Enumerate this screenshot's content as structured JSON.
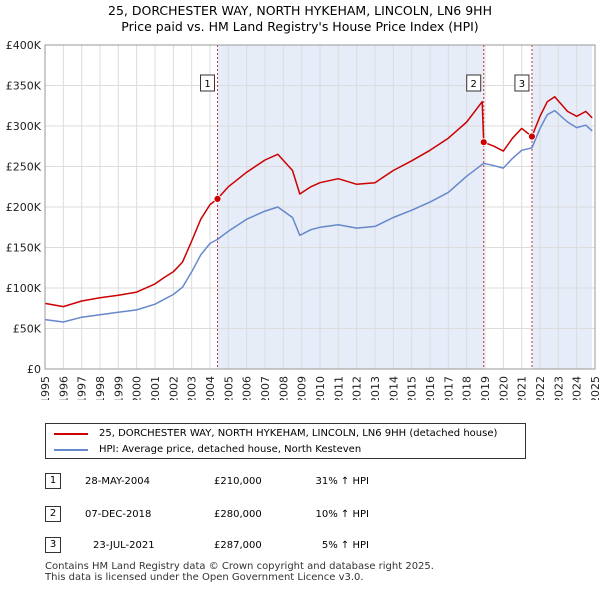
{
  "chart_data": {
    "type": "line",
    "title": "25, DORCHESTER WAY, NORTH HYKEHAM, LINCOLN, LN6 9HH",
    "subtitle": "Price paid vs. HM Land Registry's House Price Index (HPI)",
    "xlim": [
      1995.0,
      2025.0
    ],
    "ylim": [
      0,
      400000
    ],
    "grid": true,
    "x_ticks": [
      1995,
      1996,
      1997,
      1998,
      1999,
      2000,
      2001,
      2002,
      2003,
      2004,
      2005,
      2006,
      2007,
      2008,
      2009,
      2010,
      2011,
      2012,
      2013,
      2014,
      2015,
      2016,
      2017,
      2018,
      2019,
      2020,
      2021,
      2022,
      2023,
      2024,
      2025
    ],
    "x_tick_labels": [
      "1995",
      "1996",
      "1997",
      "1998",
      "1999",
      "2000",
      "2001",
      "2002",
      "2003",
      "2004",
      "2005",
      "2006",
      "2007",
      "2008",
      "2009",
      "2010",
      "2011",
      "2012",
      "2013",
      "2014",
      "2015",
      "2016",
      "2017",
      "2018",
      "2019",
      "2020",
      "2021",
      "2022",
      "2023",
      "2024",
      "2025"
    ],
    "y_ticks": [
      0,
      50000,
      100000,
      150000,
      200000,
      250000,
      300000,
      350000,
      400000
    ],
    "y_tick_labels": [
      "£0",
      "£50K",
      "£100K",
      "£150K",
      "£200K",
      "£250K",
      "£300K",
      "£350K",
      "£400K"
    ],
    "shaded_periods": [
      [
        2004.41,
        2018.93
      ],
      [
        2021.56,
        2024.85
      ]
    ],
    "series": [
      {
        "name": "25, DORCHESTER WAY, NORTH HYKEHAM, LINCOLN, LN6 9HH (detached house)",
        "color": "#cc0000",
        "x": [
          1995.0,
          1996.0,
          1997.0,
          1998.0,
          1999.0,
          2000.0,
          2001.0,
          2001.5,
          2002.0,
          2002.5,
          2003.0,
          2003.5,
          2004.0,
          2004.41,
          2005.0,
          2006.0,
          2007.0,
          2007.7,
          2008.5,
          2008.9,
          2009.5,
          2010.0,
          2011.0,
          2012.0,
          2013.0,
          2014.0,
          2015.0,
          2016.0,
          2017.0,
          2018.0,
          2018.85,
          2018.93,
          2019.5,
          2020.0,
          2020.5,
          2021.0,
          2021.56,
          2022.0,
          2022.4,
          2022.8,
          2023.5,
          2024.0,
          2024.5,
          2024.85
        ],
        "values": [
          81000,
          77000,
          84000,
          88000,
          91000,
          95000,
          105000,
          113000,
          120000,
          132000,
          158000,
          185000,
          203000,
          210000,
          225000,
          243000,
          258000,
          265000,
          245000,
          216000,
          225000,
          230000,
          235000,
          228000,
          230000,
          245000,
          257000,
          270000,
          285000,
          305000,
          330000,
          280000,
          275000,
          269000,
          285000,
          297000,
          287000,
          312000,
          330000,
          336000,
          318000,
          312000,
          318000,
          310000
        ]
      },
      {
        "name": "HPI: Average price, detached house, North Kesteven",
        "color": "#6688cc",
        "x": [
          1995.0,
          1996.0,
          1997.0,
          1998.0,
          1999.0,
          2000.0,
          2001.0,
          2001.5,
          2002.0,
          2002.5,
          2003.0,
          2003.5,
          2004.0,
          2004.41,
          2005.0,
          2006.0,
          2007.0,
          2007.7,
          2008.5,
          2008.9,
          2009.5,
          2010.0,
          2011.0,
          2012.0,
          2013.0,
          2014.0,
          2015.0,
          2016.0,
          2017.0,
          2018.0,
          2018.93,
          2019.5,
          2020.0,
          2020.5,
          2021.0,
          2021.56,
          2022.0,
          2022.4,
          2022.8,
          2023.5,
          2024.0,
          2024.5,
          2024.85
        ],
        "values": [
          61000,
          58000,
          64000,
          67000,
          70000,
          73000,
          80000,
          86000,
          92000,
          101000,
          120000,
          141000,
          155000,
          160000,
          170000,
          185000,
          195000,
          200000,
          187000,
          165000,
          172000,
          175000,
          178000,
          174000,
          176000,
          187000,
          196000,
          206000,
          218000,
          238000,
          254000,
          251000,
          248000,
          260000,
          270000,
          273000,
          297000,
          314000,
          319000,
          305000,
          298000,
          301000,
          294000
        ]
      }
    ],
    "sales": [
      {
        "label": "1",
        "x": 2004.41,
        "y": 210000
      },
      {
        "label": "2",
        "x": 2018.93,
        "y": 280000
      },
      {
        "label": "3",
        "x": 2021.56,
        "y": 287000
      }
    ]
  },
  "legend": {
    "property_label": "25, DORCHESTER WAY, NORTH HYKEHAM, LINCOLN, LN6 9HH (detached house)",
    "hpi_label": "HPI: Average price, detached house, North Kesteven"
  },
  "transactions": [
    {
      "num": "1",
      "date": "28-MAY-2004",
      "price": "£210,000",
      "hpi": "31% ↑ HPI"
    },
    {
      "num": "2",
      "date": "07-DEC-2018",
      "price": "£280,000",
      "hpi": "10% ↑ HPI"
    },
    {
      "num": "3",
      "date": "23-JUL-2021",
      "price": "£287,000",
      "hpi": "5% ↑ HPI"
    }
  ],
  "footer": {
    "line1": "Contains HM Land Registry data © Crown copyright and database right 2025.",
    "line2": "This data is licensed under the Open Government Licence v3.0."
  }
}
